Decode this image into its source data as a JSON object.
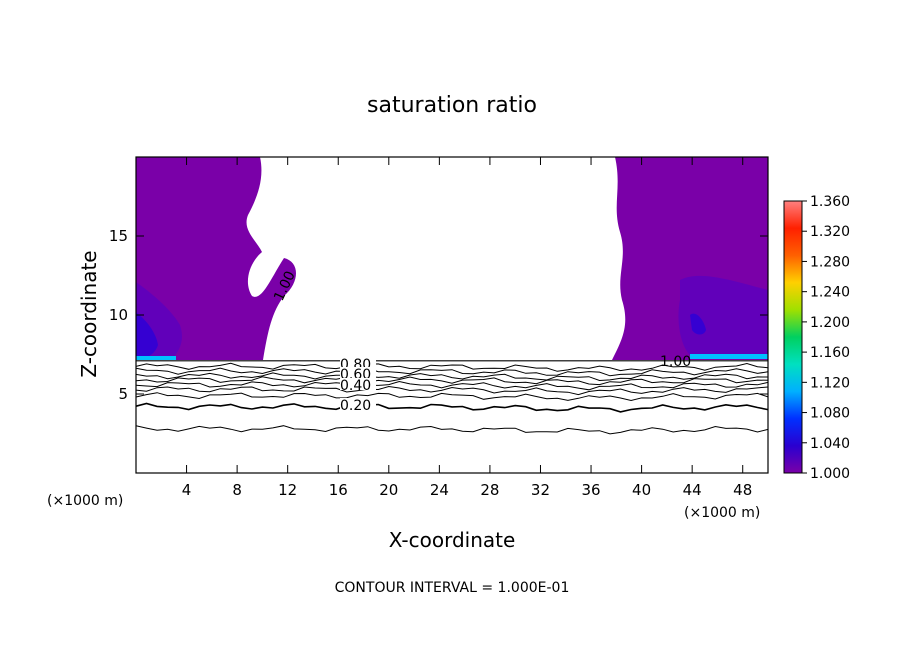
{
  "chart_data": {
    "type": "contour",
    "title": "saturation ratio",
    "xlabel": "X-coordinate",
    "ylabel": "Z-coordinate",
    "x_unit": "(×1000 m)",
    "z_unit": "(×1000 m)",
    "xlim": [
      0,
      50
    ],
    "ylim": [
      0,
      20
    ],
    "x_ticks": [
      "4",
      "8",
      "12",
      "16",
      "20",
      "24",
      "28",
      "32",
      "36",
      "40",
      "44",
      "48"
    ],
    "y_ticks": [
      "5",
      "10",
      "15"
    ],
    "colorbar": {
      "range": [
        1.0,
        1.36
      ],
      "ticks": [
        "1.000",
        "1.040",
        "1.080",
        "1.120",
        "1.160",
        "1.200",
        "1.240",
        "1.280",
        "1.320",
        "1.360"
      ],
      "colors": [
        "#7a00a8",
        "#2a00d0",
        "#0030ff",
        "#00b0ff",
        "#00e0c0",
        "#00d060",
        "#a0e000",
        "#ffd000",
        "#ff6000",
        "#ff2000",
        "#ff8080"
      ]
    },
    "contour_labels": [
      "1.00",
      "0.80",
      "0.60",
      "0.40",
      "0.20",
      "1.00"
    ],
    "subsaturated_contour_levels": [
      0.2,
      0.4,
      0.6,
      0.8
    ],
    "footnote": "CONTOUR INTERVAL = 1.000E-01"
  }
}
